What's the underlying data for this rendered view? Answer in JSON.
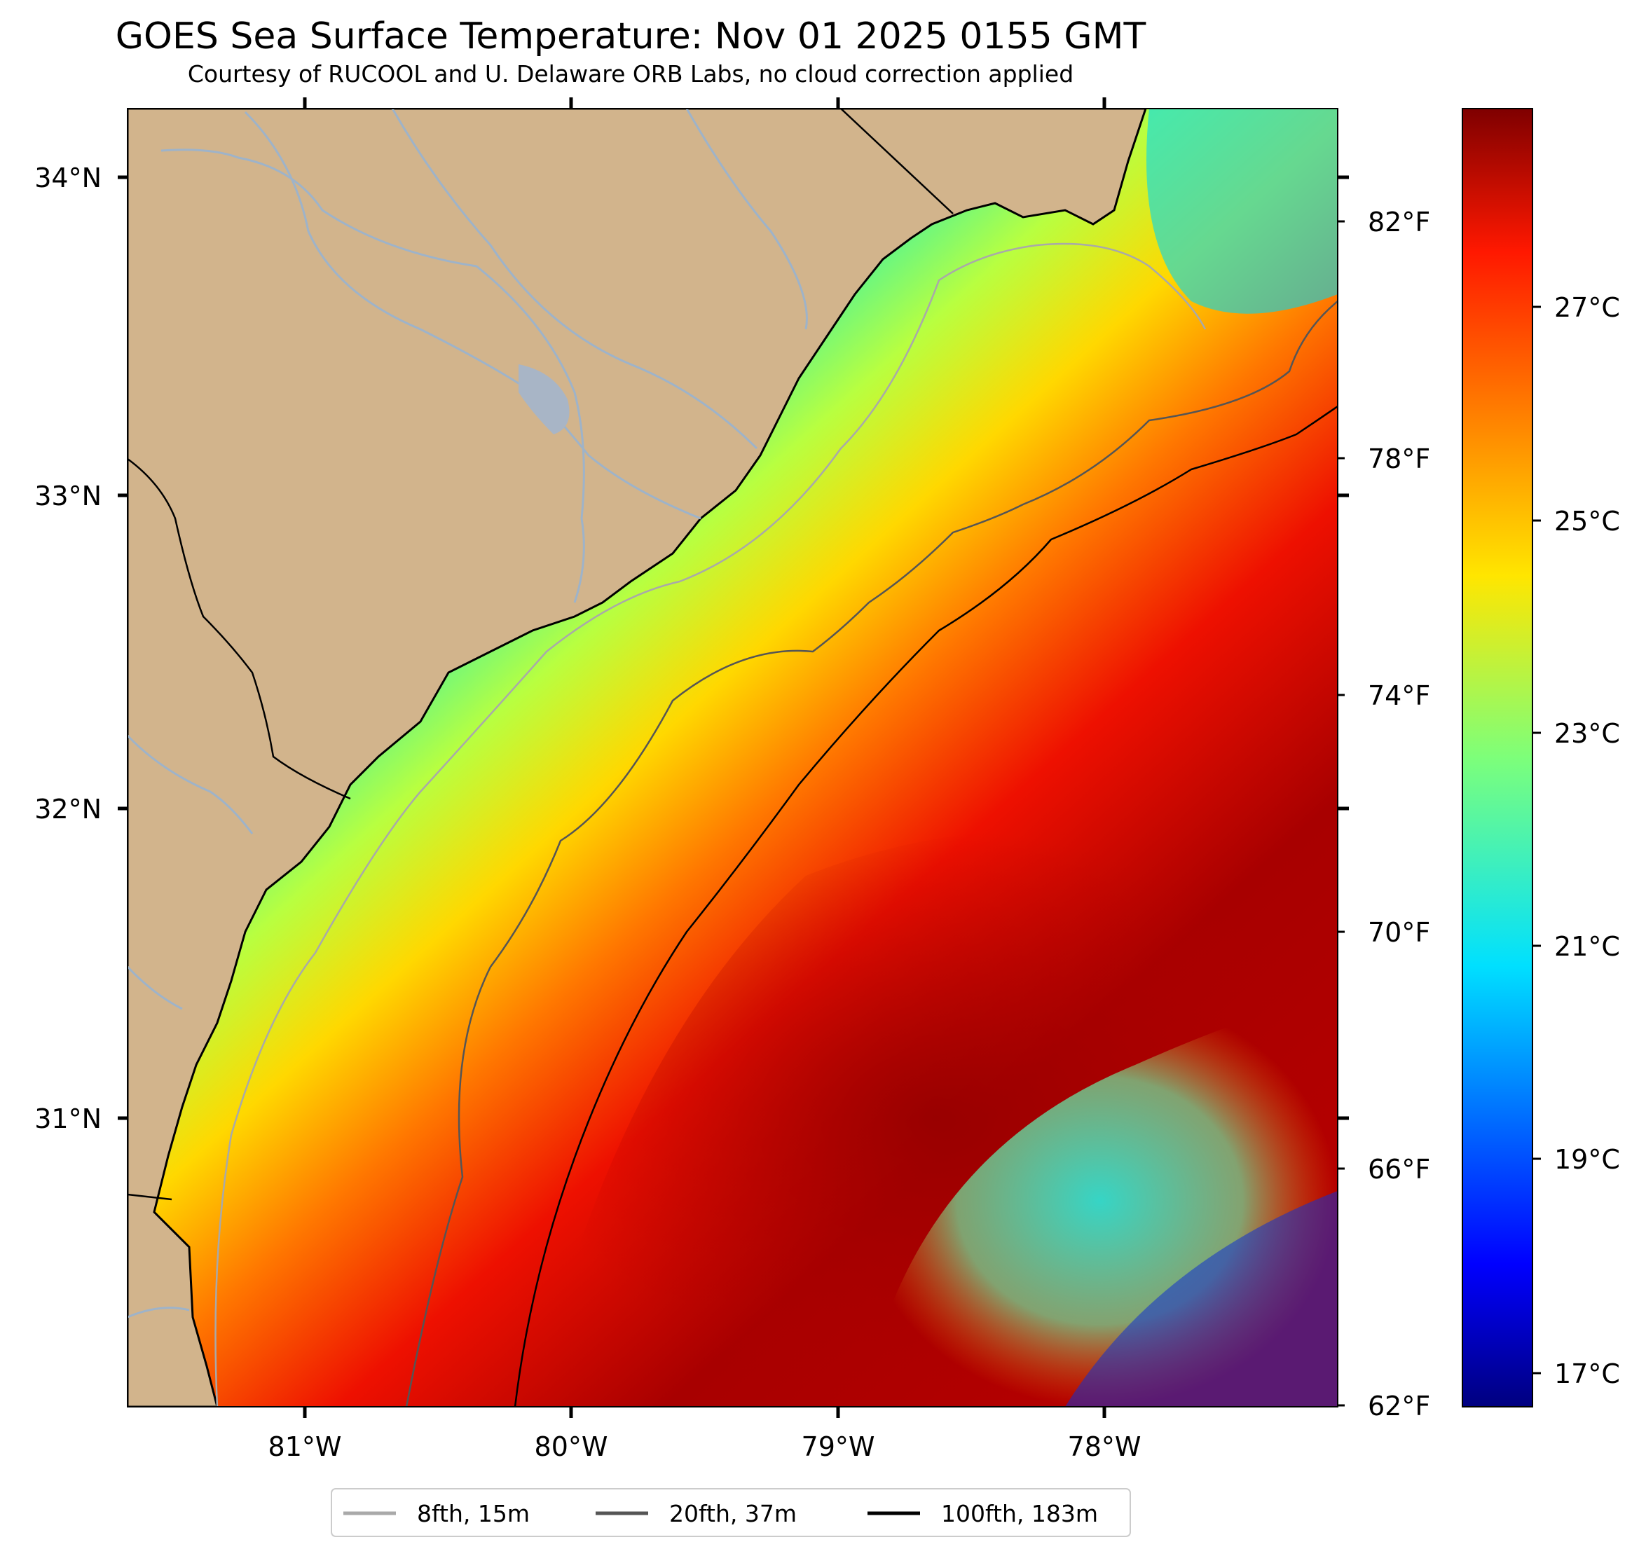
{
  "title": "GOES Sea Surface Temperature: Nov 01 2025 0155 GMT",
  "subtitle": "Courtesy of RUCOOL and U. Delaware ORB Labs, no cloud correction applied",
  "map": {
    "lat_labels": [
      "34°N",
      "33°N",
      "32°N",
      "31°N"
    ],
    "lon_labels": [
      "81°W",
      "80°W",
      "79°W",
      "78°W"
    ],
    "land_color": "#d2b48c",
    "coast_color": "#000000",
    "river_color": "#9eb3c9"
  },
  "colorbar": {
    "fahrenheit_labels": [
      "82°F",
      "78°F",
      "74°F",
      "70°F",
      "66°F",
      "62°F"
    ],
    "celsius_labels": [
      "27°C",
      "25°C",
      "23°C",
      "21°C",
      "19°C",
      "17°C"
    ],
    "cmap": "jet"
  },
  "legend": {
    "items": [
      {
        "label": "8fth, 15m",
        "color": "#a9a9a9"
      },
      {
        "label": "20fth, 37m",
        "color": "#555555"
      },
      {
        "label": "100fth, 183m",
        "color": "#000000"
      }
    ]
  }
}
